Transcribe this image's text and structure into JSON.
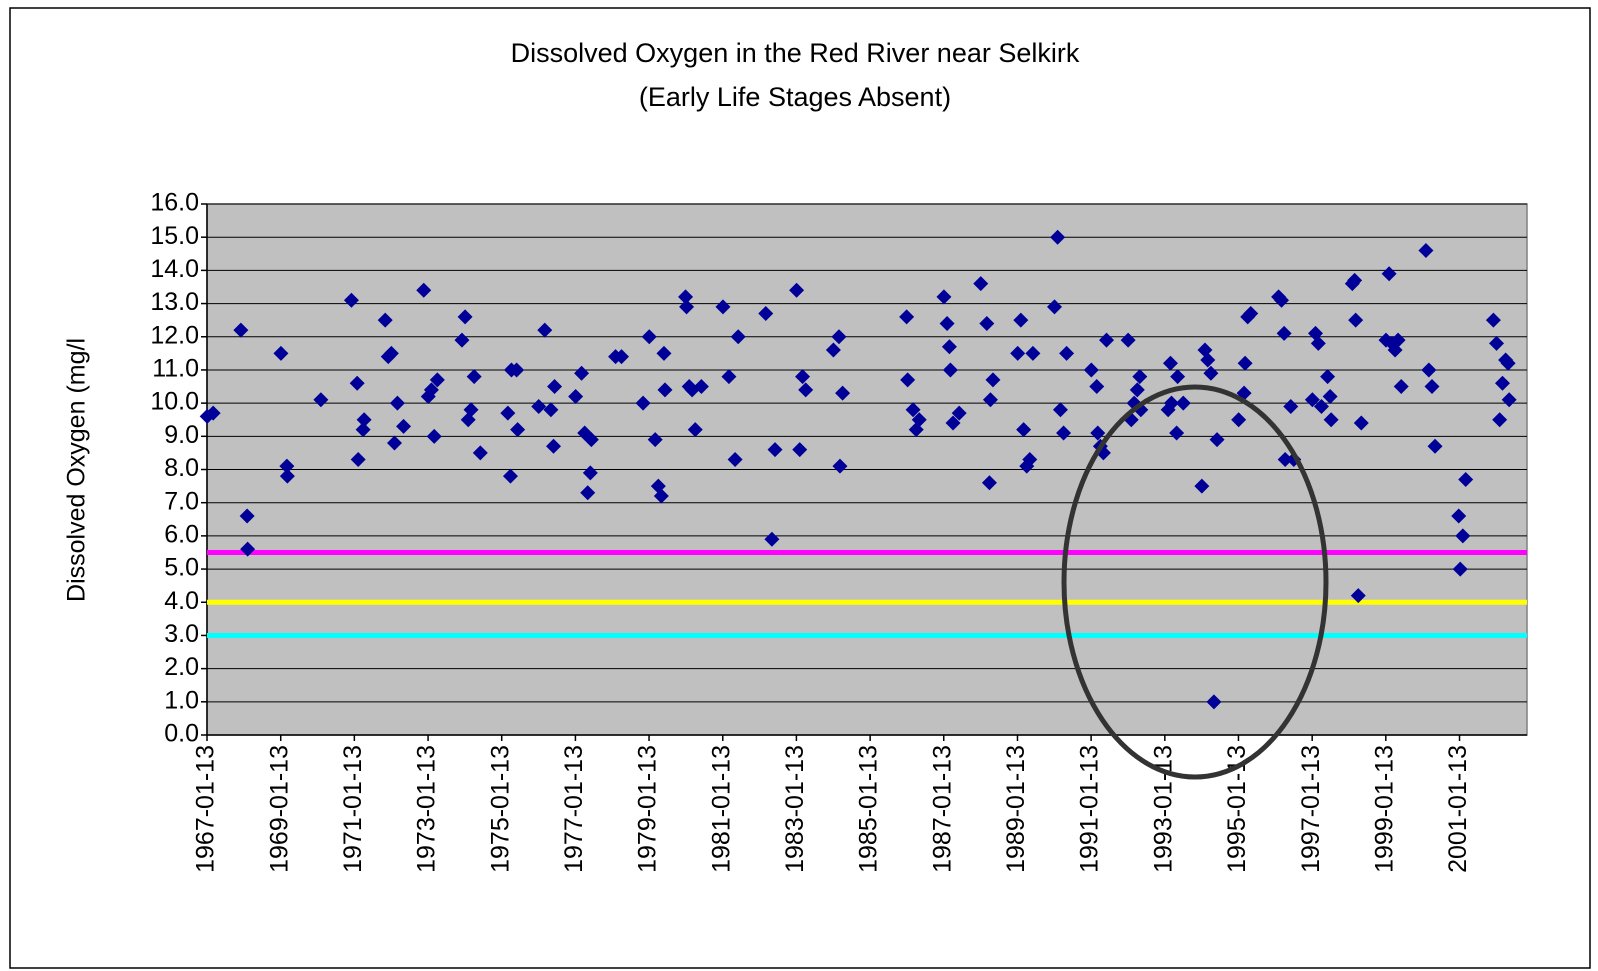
{
  "chart_data": {
    "type": "scatter",
    "title": "Dissolved Oxygen in the Red River near Selkirk",
    "subtitle": "(Early Life Stages Absent)",
    "y_label": "Dissolved Oxygen (mg/l",
    "color": "#000099",
    "plot_background": "#c0c0c0",
    "grid": true,
    "xlim": [
      "1967-01-13",
      "2002-11-13"
    ],
    "xticks": [
      "1967-01-13",
      "1969-01-13",
      "1971-01-13",
      "1973-01-13",
      "1975-01-13",
      "1977-01-13",
      "1979-01-13",
      "1981-01-13",
      "1983-01-13",
      "1985-01-13",
      "1987-01-13",
      "1989-01-13",
      "1991-01-13",
      "1993-01-13",
      "1995-01-13",
      "1997-01-13",
      "1999-01-13",
      "2001-01-13"
    ],
    "ylim": [
      0,
      16
    ],
    "yticks": [
      {
        "value": 0,
        "label": "0.0"
      },
      {
        "value": 1,
        "label": "1.0"
      },
      {
        "value": 2,
        "label": "2.0"
      },
      {
        "value": 3,
        "label": "3.0"
      },
      {
        "value": 4,
        "label": "4.0"
      },
      {
        "value": 5,
        "label": "5.0"
      },
      {
        "value": 6,
        "label": "6.0"
      },
      {
        "value": 7,
        "label": "7.0"
      },
      {
        "value": 8,
        "label": "8.0"
      },
      {
        "value": 9,
        "label": "9.0"
      },
      {
        "value": 10,
        "label": "10.0"
      },
      {
        "value": 11,
        "label": "11.0"
      },
      {
        "value": 12,
        "label": "12.0"
      },
      {
        "value": 13,
        "label": "13.0"
      },
      {
        "value": 14,
        "label": "14.0"
      },
      {
        "value": 15,
        "label": "15.0"
      },
      {
        "value": 16,
        "label": "16.0"
      }
    ],
    "reference_lines": [
      {
        "value": 5.5,
        "color": "#ff00ff"
      },
      {
        "value": 4,
        "color": "#ffff00"
      },
      {
        "value": 3,
        "color": "#00ffff"
      }
    ],
    "x": [
      "1967-01-15",
      "1967-03-15",
      "1967-12-15",
      "1968-02-15",
      "1968-02-20",
      "1969-01-15",
      "1969-03-15",
      "1969-03-20",
      "1970-02-15",
      "1970-12-15",
      "1971-02-10",
      "1971-02-20",
      "1971-04-10",
      "1971-04-20",
      "1971-11-15",
      "1971-12-15",
      "1972-01-15",
      "1972-02-15",
      "1972-03-15",
      "1972-05-15",
      "1972-12-01",
      "1973-01-15",
      "1973-02-15",
      "1973-04-15",
      "1973-03-15",
      "1973-12-15",
      "1974-01-15",
      "1974-02-15",
      "1974-03-15",
      "1974-04-15",
      "1974-06-15",
      "1975-03-15",
      "1975-04-10",
      "1975-04-20",
      "1975-06-10",
      "1975-06-20",
      "1976-01-15",
      "1976-03-15",
      "1976-05-15",
      "1976-06-10",
      "1976-06-20",
      "1977-01-15",
      "1977-03-15",
      "1977-04-15",
      "1977-05-15",
      "1977-06-10",
      "1977-06-20",
      "1978-02-15",
      "1978-04-15",
      "1979-01-15",
      "1978-11-15",
      "1979-03-15",
      "1979-04-15",
      "1979-05-15",
      "1979-06-10",
      "1979-06-20",
      "1980-01-10",
      "1980-01-20",
      "1980-02-15",
      "1980-03-15",
      "1980-04-15",
      "1980-06-15",
      "1981-01-15",
      "1981-03-15",
      "1981-05-15",
      "1981-06-15",
      "1982-03-15",
      "1982-06-15",
      "1982-05-15",
      "1983-01-15",
      "1983-02-15",
      "1983-03-15",
      "1983-04-15",
      "1984-01-15",
      "1984-03-10",
      "1984-03-20",
      "1984-04-15",
      "1986-01-10",
      "1986-01-20",
      "1986-03-15",
      "1986-04-15",
      "1986-05-15",
      "1987-01-15",
      "1987-02-15",
      "1987-03-10",
      "1987-03-20",
      "1987-04-15",
      "1987-06-15",
      "1988-01-15",
      "1988-03-15",
      "1988-04-10",
      "1988-04-20",
      "1988-05-15",
      "1989-02-15",
      "1989-01-15",
      "1989-03-15",
      "1989-04-15",
      "1989-05-15",
      "1989-06-15",
      "1990-02-15",
      "1990-01-15",
      "1990-03-15",
      "1990-04-15",
      "1990-05-15",
      "1991-01-15",
      "1991-03-10",
      "1991-03-20",
      "1991-04-15",
      "1991-05-15",
      "1991-06-15",
      "1992-01-15",
      "1992-02-15",
      "1992-03-15",
      "1992-04-15",
      "1992-05-10",
      "1992-05-20",
      "1993-02-15",
      "1993-03-10",
      "1993-03-20",
      "1993-05-10",
      "1993-05-20",
      "1993-07-15",
      "1994-01-15",
      "1994-02-15",
      "1994-03-15",
      "1994-04-15",
      "1994-05-15",
      "1994-06-15",
      "1995-01-15",
      "1995-03-10",
      "1995-03-20",
      "1995-04-15",
      "1995-05-15",
      "1996-02-15",
      "1996-03-15",
      "1996-04-10",
      "1996-04-20",
      "1996-06-15",
      "1996-07-15",
      "1997-02-15",
      "1997-01-15",
      "1997-03-15",
      "1997-04-15",
      "1997-06-15",
      "1997-07-10",
      "1997-07-20",
      "1998-02-15",
      "1998-03-10",
      "1998-03-20",
      "1998-04-15",
      "1998-05-15",
      "1999-02-15",
      "1999-01-15",
      "1999-03-15",
      "1999-04-15",
      "1999-05-15",
      "1999-06-15",
      "2000-02-15",
      "2000-03-15",
      "2000-04-15",
      "2000-05-15",
      "2001-01-05",
      "2001-01-20",
      "2001-02-15",
      "2001-03-15",
      "2001-12-15",
      "2002-01-15",
      "2002-02-15",
      "2002-03-15",
      "2002-04-15",
      "2002-05-10",
      "2002-05-20"
    ],
    "values": [
      9.6,
      9.7,
      12.2,
      6.6,
      5.6,
      11.5,
      8.1,
      7.8,
      10.1,
      13.1,
      10.6,
      8.3,
      9.2,
      9.5,
      12.5,
      11.4,
      11.5,
      8.8,
      10.0,
      9.3,
      13.4,
      10.2,
      10.4,
      10.7,
      9.0,
      11.9,
      12.6,
      9.5,
      9.8,
      10.8,
      8.5,
      9.7,
      7.8,
      11.0,
      11.0,
      9.2,
      9.9,
      12.2,
      9.8,
      8.7,
      10.5,
      10.2,
      10.9,
      9.1,
      7.3,
      7.9,
      8.9,
      11.4,
      11.4,
      12.0,
      10.0,
      8.9,
      7.5,
      7.2,
      11.5,
      10.4,
      13.2,
      12.9,
      10.5,
      10.4,
      9.2,
      10.5,
      12.9,
      10.8,
      8.3,
      12.0,
      12.7,
      8.6,
      5.9,
      13.4,
      8.6,
      10.8,
      10.4,
      11.6,
      12.0,
      8.1,
      10.3,
      12.6,
      10.7,
      9.8,
      9.2,
      9.5,
      13.2,
      12.4,
      11.7,
      11.0,
      9.4,
      9.7,
      13.6,
      12.4,
      7.6,
      10.1,
      10.7,
      12.5,
      11.5,
      9.2,
      8.1,
      8.3,
      11.5,
      15.0,
      12.9,
      9.8,
      9.1,
      11.5,
      11.0,
      10.5,
      9.1,
      8.7,
      8.5,
      11.9,
      11.9,
      9.5,
      10.0,
      10.4,
      10.8,
      9.8,
      9.8,
      11.2,
      10.0,
      9.1,
      10.8,
      10.0,
      7.5,
      11.6,
      11.3,
      10.9,
      1.0,
      8.9,
      9.5,
      10.3,
      11.2,
      12.6,
      12.7,
      13.2,
      13.1,
      12.1,
      8.3,
      9.9,
      8.3,
      12.1,
      10.1,
      11.8,
      9.9,
      10.8,
      10.2,
      9.5,
      13.6,
      13.7,
      12.5,
      4.2,
      9.4,
      13.9,
      11.9,
      11.8,
      11.6,
      11.9,
      10.5,
      14.6,
      11.0,
      10.5,
      8.7,
      6.6,
      5.0,
      6.0,
      7.7,
      12.5,
      11.8,
      9.5,
      10.6,
      11.3,
      11.2,
      10.1
    ]
  }
}
